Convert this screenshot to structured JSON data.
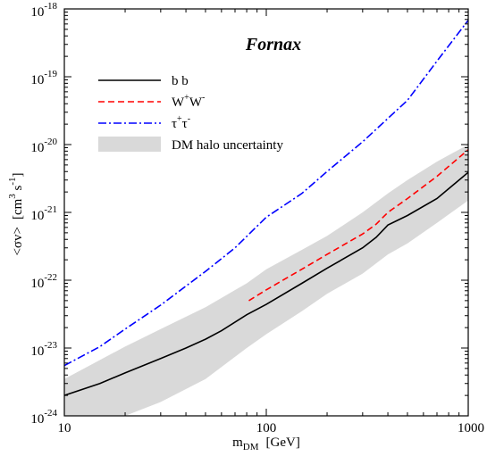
{
  "chart_data": {
    "type": "line",
    "title": "Fornax",
    "xlabel": "m",
    "xlabel_sub": "DM",
    "xlabel_unit": "[GeV]",
    "ylabel": "<σv>",
    "ylabel_unit_parts": [
      "[cm",
      "3",
      " s",
      "-1",
      "]"
    ],
    "xscale": "log",
    "yscale": "log",
    "xlim": [
      10,
      1000
    ],
    "ylim": [
      1e-24,
      1e-18
    ],
    "x_ticks": [
      10,
      100,
      1000
    ],
    "x_tick_labels": [
      "10",
      "100",
      "1000"
    ],
    "y_ticks": [
      1e-24,
      1e-23,
      1e-22,
      1e-21,
      1e-20,
      1e-19,
      1e-18
    ],
    "y_tick_labels": [
      {
        "base": "10",
        "exp": "-24"
      },
      {
        "base": "10",
        "exp": "-23"
      },
      {
        "base": "10",
        "exp": "-22"
      },
      {
        "base": "10",
        "exp": "-21"
      },
      {
        "base": "10",
        "exp": "-20"
      },
      {
        "base": "10",
        "exp": "-19"
      },
      {
        "base": "10",
        "exp": "-18"
      }
    ],
    "grid": false,
    "legend_position": "upper-left",
    "series": [
      {
        "name": "b b",
        "color": "#000000",
        "dash": "solid",
        "points": [
          [
            10,
            2e-24
          ],
          [
            15,
            3e-24
          ],
          [
            20,
            4.3e-24
          ],
          [
            30,
            7e-24
          ],
          [
            40,
            1e-23
          ],
          [
            50,
            1.35e-23
          ],
          [
            60,
            1.8e-23
          ],
          [
            80,
            3.1e-23
          ],
          [
            100,
            4.4e-23
          ],
          [
            150,
            9e-23
          ],
          [
            200,
            1.5e-22
          ],
          [
            300,
            3e-22
          ],
          [
            350,
            4.3e-22
          ],
          [
            400,
            6.5e-22
          ],
          [
            500,
            9e-22
          ],
          [
            700,
            1.6e-21
          ],
          [
            1000,
            3.9e-21
          ]
        ]
      },
      {
        "name": "W+W-",
        "legend_parts": [
          "W",
          "+",
          "W",
          "-"
        ],
        "color": "#ff0000",
        "dash": "dashed",
        "points": [
          [
            82,
            5e-23
          ],
          [
            100,
            7.2e-23
          ],
          [
            150,
            1.45e-22
          ],
          [
            200,
            2.4e-22
          ],
          [
            300,
            4.8e-22
          ],
          [
            350,
            6.7e-22
          ],
          [
            400,
            1e-21
          ],
          [
            500,
            1.6e-21
          ],
          [
            700,
            3.4e-21
          ],
          [
            1000,
            8.4e-21
          ]
        ]
      },
      {
        "name": "τ+τ-",
        "legend_parts": [
          "τ",
          "+",
          "τ",
          "-"
        ],
        "color": "#0000ff",
        "dash": "dashdot",
        "points": [
          [
            10,
            5.5e-24
          ],
          [
            15,
            1.05e-23
          ],
          [
            20,
            1.9e-23
          ],
          [
            30,
            4.3e-23
          ],
          [
            50,
            1.35e-22
          ],
          [
            70,
            3e-22
          ],
          [
            100,
            8.5e-22
          ],
          [
            150,
            1.9e-21
          ],
          [
            200,
            4e-21
          ],
          [
            300,
            1.1e-20
          ],
          [
            500,
            4.5e-20
          ],
          [
            700,
            1.7e-19
          ],
          [
            1000,
            6.8e-19
          ]
        ]
      }
    ],
    "band": {
      "name": "DM halo uncertainty",
      "color": "#d9d9d9",
      "x": [
        10,
        20,
        30,
        50,
        80,
        100,
        150,
        200,
        300,
        400,
        500,
        700,
        1000
      ],
      "lower": [
        1e-24,
        1e-24,
        1.6e-24,
        3.5e-24,
        1e-23,
        1.6e-23,
        3.5e-23,
        6.3e-23,
        1.25e-22,
        2.4e-22,
        3.5e-22,
        7e-22,
        1.5e-21
      ],
      "upper": [
        3.5e-24,
        1.05e-23,
        1.9e-23,
        4e-23,
        9e-23,
        1.45e-22,
        2.8e-22,
        4.5e-22,
        1e-21,
        1.9e-21,
        3e-21,
        5.6e-21,
        1e-20
      ]
    }
  }
}
